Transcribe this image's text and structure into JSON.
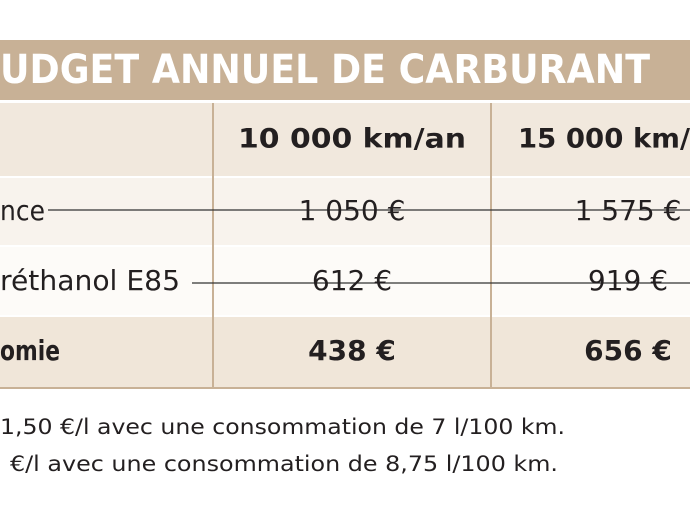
{
  "title": "UDGET ANNUEL DE CARBURANT",
  "table": {
    "header": [
      "10 000 km/an",
      "15 000 km/"
    ],
    "rows": [
      [
        "nce",
        "1 050 €",
        "1 575 €"
      ],
      [
        "réthanol E85",
        "612 €",
        "919 €"
      ],
      [
        "omie",
        "438 €",
        "656 €"
      ]
    ]
  },
  "footnotes": [
    "1,50 €/l avec une consommation de 7 l/100 km.",
    "€/l avec une consommation de 8,75 l/100 km."
  ]
}
